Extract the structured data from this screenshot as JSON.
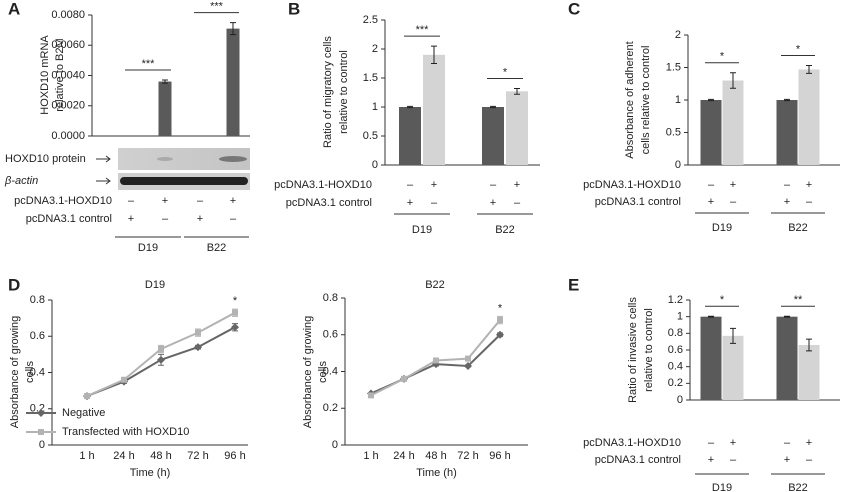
{
  "chart_data": [
    {
      "type": "bar",
      "label": "A",
      "ylabel": [
        "HOXD10 mRNA",
        "relative to B2M"
      ],
      "ylim": [
        0,
        0.008
      ],
      "yticks": [
        {
          "value": 0,
          "label": "0.0000"
        },
        {
          "value": 0.002,
          "label": "0.0020"
        },
        {
          "value": 0.004,
          "label": "0.0040"
        },
        {
          "value": 0.006,
          "label": "0.0060"
        },
        {
          "value": 0.008,
          "label": "0.0080"
        }
      ],
      "groups": [
        "D19",
        "B22"
      ],
      "values": [
        0,
        0.0036,
        0,
        0.0071
      ],
      "errors": [
        0,
        0.0001,
        0,
        0.0004
      ],
      "bar_colors": [
        "#5a5a5a",
        "#5a5a5a",
        "#5a5a5a",
        "#5a5a5a"
      ],
      "significance": [
        "***",
        "***"
      ],
      "blot_labels": [
        "HOXD10 protein",
        "β-actin"
      ],
      "conditions": [
        {
          "label": "pcDNA3.1-HOXD10",
          "signs": [
            "–",
            "+",
            "–",
            "+"
          ]
        },
        {
          "label": "pcDNA3.1 control",
          "signs": [
            "+",
            "–",
            "+",
            "–"
          ]
        }
      ]
    },
    {
      "type": "bar",
      "label": "B",
      "ylabel": [
        "Ratio of migratory cells",
        "relative to control"
      ],
      "ylim": [
        0,
        2.5
      ],
      "yticks": [
        0,
        0.5,
        1,
        1.5,
        2,
        2.5
      ],
      "groups": [
        "D19",
        "B22"
      ],
      "values": [
        1,
        1.9,
        1,
        1.27
      ],
      "errors": [
        0.01,
        0.15,
        0.01,
        0.05
      ],
      "bar_colors": [
        "#5a5a5a",
        "#d4d4d4",
        "#5a5a5a",
        "#d4d4d4"
      ],
      "significance": [
        "***",
        "*"
      ],
      "conditions": [
        {
          "label": "pcDNA3.1-HOXD10",
          "signs": [
            "–",
            "+",
            "–",
            "+"
          ]
        },
        {
          "label": "pcDNA3.1 control",
          "signs": [
            "+",
            "–",
            "+",
            "–"
          ]
        }
      ]
    },
    {
      "type": "bar",
      "label": "C",
      "ylabel": [
        "Absorbance of adherent",
        "cells relative to control"
      ],
      "ylim": [
        0,
        2
      ],
      "yticks": [
        0,
        0.5,
        1,
        1.5,
        2
      ],
      "groups": [
        "D19",
        "B22"
      ],
      "values": [
        1,
        1.3,
        1,
        1.47
      ],
      "errors": [
        0.01,
        0.12,
        0.01,
        0.06
      ],
      "bar_colors": [
        "#5a5a5a",
        "#d4d4d4",
        "#5a5a5a",
        "#d4d4d4"
      ],
      "significance": [
        "*",
        "*"
      ],
      "conditions": [
        {
          "label": "pcDNA3.1-HOXD10",
          "signs": [
            "–",
            "+",
            "–",
            "+"
          ]
        },
        {
          "label": "pcDNA3.1 control",
          "signs": [
            "+",
            "–",
            "+",
            "–"
          ]
        }
      ]
    },
    {
      "type": "line",
      "label": "D",
      "title": "D19",
      "xlabel": "Time (h)",
      "ylabel": [
        "Absorbance of growing",
        "cells"
      ],
      "categories": [
        "1 h",
        "24 h",
        "48 h",
        "72 h",
        "96 h"
      ],
      "ylim": [
        0,
        0.8
      ],
      "yticks": [
        0,
        0.2,
        0.4,
        0.6,
        0.8
      ],
      "significance": [
        null,
        null,
        null,
        null,
        "*"
      ],
      "legend": "lower-left",
      "series": [
        {
          "name": "Negative",
          "color": "#666666",
          "marker": "diamond",
          "values": [
            0.27,
            0.35,
            0.47,
            0.54,
            0.65
          ],
          "errors": [
            0.01,
            0.01,
            0.03,
            0.01,
            0.02
          ]
        },
        {
          "name": "Transfected with HOXD10",
          "color": "#b3b3b3",
          "marker": "square",
          "values": [
            0.27,
            0.36,
            0.53,
            0.62,
            0.73
          ],
          "errors": [
            0.01,
            0.01,
            0.02,
            0.02,
            0.02
          ]
        }
      ]
    },
    {
      "type": "line",
      "title": "B22",
      "xlabel": "Time (h)",
      "ylabel": [
        "Absorbance of growing",
        "cells"
      ],
      "categories": [
        "1 h",
        "24 h",
        "48 h",
        "72 h",
        "96 h"
      ],
      "ylim": [
        0,
        0.8
      ],
      "yticks": [
        0,
        0.2,
        0.4,
        0.6,
        0.8
      ],
      "significance": [
        null,
        null,
        null,
        null,
        "*"
      ],
      "series": [
        {
          "color": "#666666",
          "marker": "diamond",
          "values": [
            0.28,
            0.36,
            0.44,
            0.43,
            0.6
          ],
          "errors": [
            0.005,
            0.005,
            0.01,
            0.005,
            0.01
          ]
        },
        {
          "color": "#b3b3b3",
          "marker": "square",
          "values": [
            0.27,
            0.36,
            0.46,
            0.47,
            0.68
          ],
          "errors": [
            0.005,
            0.005,
            0.01,
            0.005,
            0.02
          ]
        }
      ]
    },
    {
      "type": "bar",
      "label": "E",
      "ylabel": [
        "Ratio of invasive cells",
        "relative to control"
      ],
      "ylim": [
        0,
        1.2
      ],
      "yticks": [
        0,
        0.2,
        0.4,
        0.6,
        0.8,
        1,
        1.2
      ],
      "groups": [
        "D19",
        "B22"
      ],
      "values": [
        1,
        0.77,
        1,
        0.66
      ],
      "errors": [
        0.005,
        0.09,
        0.005,
        0.07
      ],
      "bar_colors": [
        "#5a5a5a",
        "#d4d4d4",
        "#5a5a5a",
        "#d4d4d4"
      ],
      "significance": [
        "*",
        "**"
      ],
      "conditions": [
        {
          "label": "pcDNA3.1-HOXD10",
          "signs": [
            "–",
            "+",
            "–",
            "+"
          ]
        },
        {
          "label": "pcDNA3.1 control",
          "signs": [
            "+",
            "–",
            "+",
            "–"
          ]
        }
      ]
    }
  ]
}
